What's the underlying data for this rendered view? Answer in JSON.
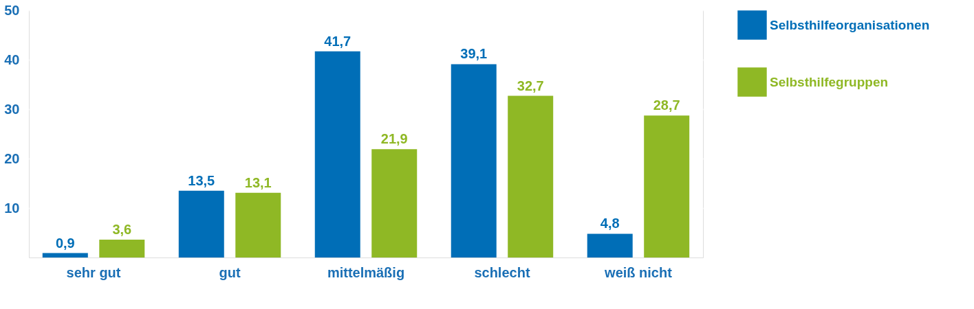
{
  "chart_data": {
    "type": "bar",
    "categories": [
      "sehr gut",
      "gut",
      "mittelmäßig",
      "schlecht",
      "weiß nicht"
    ],
    "series": [
      {
        "name": "Selbsthilfeorganisationen",
        "color": "#006eb7",
        "values": [
          0.9,
          13.5,
          41.7,
          39.1,
          4.8
        ],
        "value_labels": [
          "0,9",
          "13,5",
          "41,7",
          "39,1",
          "4,8"
        ]
      },
      {
        "name": "Selbsthilfegruppen",
        "color": "#8fb825",
        "values": [
          3.6,
          13.1,
          21.9,
          32.7,
          28.7
        ],
        "value_labels": [
          "3,6",
          "13,1",
          "21,9",
          "32,7",
          "28,7"
        ]
      }
    ],
    "ylim": [
      0,
      50
    ],
    "yticks": [
      10,
      20,
      30,
      40,
      50
    ],
    "grid": "y",
    "legend": "right"
  }
}
